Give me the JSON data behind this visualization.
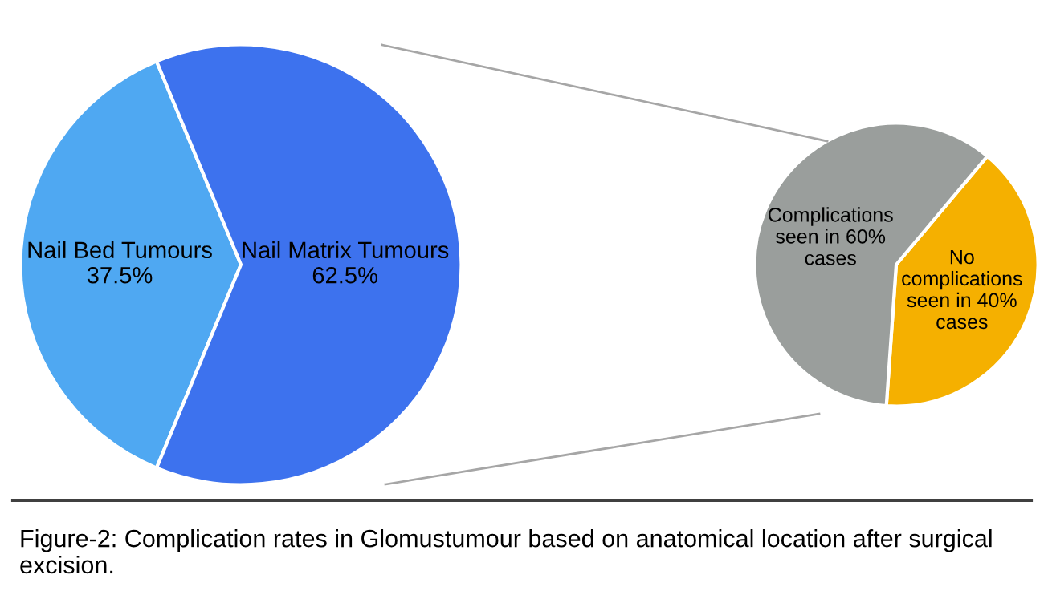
{
  "chart_data": [
    {
      "type": "pie",
      "categories": [
        "Nail Bed Tumours",
        "Nail Matrix Tumours"
      ],
      "values": [
        37.5,
        62.5
      ],
      "value_labels": [
        "37.5%",
        "62.5%"
      ],
      "colors": [
        "#4fa8f2",
        "#3d72ee"
      ],
      "annotations": [
        "Figure-2: Complication rates in Glomustumour based on anatomical location after surgical excision."
      ]
    },
    {
      "type": "pie",
      "categories": [
        "No\ncomplications\nseen in 40%\ncases",
        "Complications\nseen in 60%\ncases"
      ],
      "values": [
        40,
        60
      ],
      "colors": [
        "#f5b000",
        "#9a9e9c"
      ]
    }
  ]
}
